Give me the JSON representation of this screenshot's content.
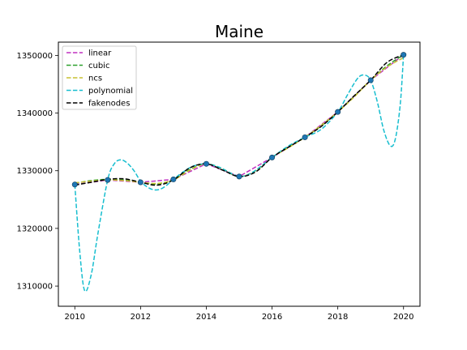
{
  "chart_data": {
    "type": "line",
    "title": "Maine",
    "xlabel": "",
    "ylabel": "",
    "xlim": [
      2009.5,
      2020.5
    ],
    "ylim": [
      1306500,
      1352300
    ],
    "x_ticks": [
      2010,
      2012,
      2014,
      2016,
      2018,
      2020
    ],
    "x_tick_labels": [
      "2010",
      "2012",
      "2014",
      "2016",
      "2018",
      "2020"
    ],
    "y_ticks": [
      1310000,
      1320000,
      1330000,
      1340000,
      1350000
    ],
    "y_tick_labels": [
      "1310000",
      "1320000",
      "1330000",
      "1340000",
      "1350000"
    ],
    "grid": false,
    "legend_position": "top-left",
    "data_points": {
      "x": [
        2010,
        2011,
        2012,
        2013,
        2014,
        2015,
        2016,
        2017,
        2018,
        2019,
        2020
      ],
      "y": [
        1327600,
        1328400,
        1328000,
        1328500,
        1331200,
        1329000,
        1332300,
        1335800,
        1340200,
        1345700,
        1350100
      ],
      "color": "#1f77b4"
    },
    "series": [
      {
        "name": "linear",
        "color": "#c030c0",
        "x": [
          2010,
          2011,
          2012,
          2013,
          2014,
          2015,
          2016,
          2017,
          2018,
          2019,
          2020
        ],
        "y": [
          1327600,
          1328400,
          1328000,
          1328500,
          1331200,
          1329000,
          1332300,
          1335800,
          1340200,
          1345700,
          1350100
        ]
      },
      {
        "name": "cubic",
        "color": "#2ca02c",
        "x": [
          2010,
          2010.5,
          2011,
          2011.5,
          2012,
          2012.5,
          2013,
          2013.5,
          2014,
          2014.5,
          2015,
          2015.5,
          2016,
          2016.5,
          2017,
          2017.5,
          2018,
          2018.5,
          2019,
          2019.5,
          2020
        ],
        "y": [
          1327800,
          1328300,
          1328500,
          1328400,
          1328000,
          1327700,
          1328500,
          1330200,
          1331200,
          1330200,
          1329000,
          1330000,
          1332300,
          1334100,
          1335800,
          1337800,
          1340200,
          1342900,
          1345700,
          1348200,
          1350100
        ]
      },
      {
        "name": "ncs",
        "color": "#c8c030",
        "x": [
          2010,
          2010.5,
          2011,
          2011.5,
          2012,
          2012.5,
          2013,
          2013.5,
          2014,
          2014.5,
          2015,
          2015.5,
          2016,
          2016.5,
          2017,
          2017.5,
          2018,
          2018.5,
          2019,
          2019.5,
          2020
        ],
        "y": [
          1327900,
          1328200,
          1328400,
          1328300,
          1328000,
          1327800,
          1328400,
          1330100,
          1331200,
          1330300,
          1329000,
          1330000,
          1332300,
          1334000,
          1335800,
          1337900,
          1340200,
          1342800,
          1345700,
          1348000,
          1349600
        ]
      },
      {
        "name": "polynomial",
        "color": "#17becf",
        "x": [
          2010,
          2010.15,
          2010.3,
          2010.5,
          2010.7,
          2011,
          2011.2,
          2011.4,
          2011.6,
          2011.8,
          2012,
          2012.2,
          2012.4,
          2012.6,
          2012.8,
          2013,
          2013.3,
          2013.6,
          2014,
          2014.4,
          2014.7,
          2015,
          2015.3,
          2015.6,
          2016,
          2016.5,
          2017,
          2017.5,
          2018,
          2018.3,
          2018.6,
          2018.8,
          2019,
          2019.2,
          2019.4,
          2019.6,
          2019.75,
          2019.9,
          2020
        ],
        "y": [
          1327600,
          1316000,
          1309200,
          1312000,
          1319000,
          1328400,
          1331200,
          1331900,
          1331300,
          1330000,
          1328200,
          1327200,
          1326700,
          1326800,
          1327500,
          1328500,
          1329800,
          1330800,
          1331200,
          1330600,
          1329700,
          1329000,
          1329400,
          1330500,
          1332300,
          1334300,
          1335800,
          1337200,
          1340200,
          1343200,
          1346000,
          1346600,
          1345700,
          1342000,
          1337000,
          1334300,
          1335500,
          1341500,
          1350100
        ]
      },
      {
        "name": "fakenodes",
        "color": "#000000",
        "x": [
          2010,
          2010.5,
          2011,
          2011.5,
          2012,
          2012.5,
          2013,
          2013.5,
          2014,
          2014.5,
          2015,
          2015.5,
          2016,
          2016.5,
          2017,
          2017.5,
          2018,
          2018.5,
          2019,
          2019.5,
          2020
        ],
        "y": [
          1327500,
          1328000,
          1328500,
          1328600,
          1328000,
          1327500,
          1328400,
          1330500,
          1331200,
          1330100,
          1329000,
          1329800,
          1332300,
          1334100,
          1335800,
          1337700,
          1340200,
          1343000,
          1345700,
          1348800,
          1350100
        ]
      }
    ]
  }
}
